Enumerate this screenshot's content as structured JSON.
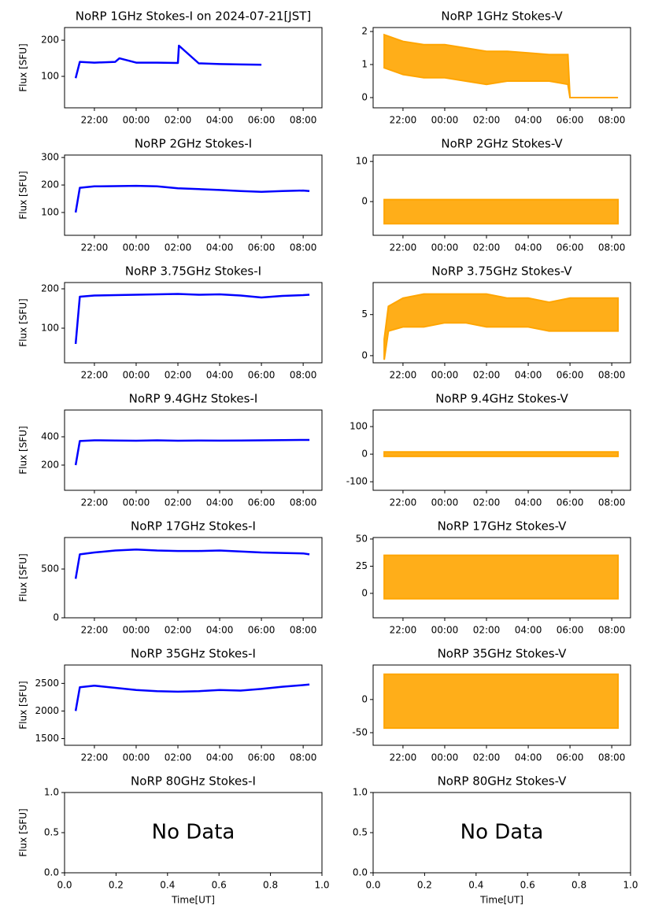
{
  "chart_data": [
    {
      "type": "line",
      "title": "NoRP 1GHz Stokes-I on 2024-07-21[JST]",
      "ylabel": "Flux [SFU]",
      "x": [
        21.1,
        21.3,
        22,
        23,
        23.2,
        24,
        25,
        26,
        26.05,
        27,
        28,
        29,
        30
      ],
      "series": [
        {
          "color": "blue",
          "values": [
            95,
            140,
            138,
            140,
            150,
            138,
            138,
            137,
            185,
            136,
            134,
            133,
            132
          ]
        }
      ],
      "xlim": [
        20.57,
        32.9
      ],
      "xticks": [
        {
          "value": 22,
          "label": "22:00"
        },
        {
          "value": 24,
          "label": "00:00"
        },
        {
          "value": 26,
          "label": "02:00"
        },
        {
          "value": 28,
          "label": "04:00"
        },
        {
          "value": 30,
          "label": "06:00"
        },
        {
          "value": 32,
          "label": "08:00"
        }
      ],
      "ylim": [
        13,
        235
      ],
      "yticks": [
        100,
        200
      ]
    },
    {
      "type": "band",
      "title": "NoRP 1GHz Stokes-V",
      "x": [
        21.1,
        22,
        23,
        24,
        25,
        26,
        27,
        28,
        29,
        29.9,
        30,
        31,
        32,
        32.3
      ],
      "series": [
        {
          "color": "orange",
          "values": [
            1.9,
            1.7,
            1.6,
            1.6,
            1.5,
            1.4,
            1.4,
            1.35,
            1.3,
            1.3,
            0,
            0,
            0,
            0
          ]
        },
        {
          "color": "orange",
          "values": [
            0.9,
            0.7,
            0.6,
            0.6,
            0.5,
            0.4,
            0.5,
            0.5,
            0.5,
            0.4,
            0,
            0,
            0,
            0
          ]
        }
      ],
      "xlim": [
        20.57,
        32.9
      ],
      "xticks": [
        {
          "value": 22,
          "label": "22:00"
        },
        {
          "value": 24,
          "label": "00:00"
        },
        {
          "value": 26,
          "label": "02:00"
        },
        {
          "value": 28,
          "label": "04:00"
        },
        {
          "value": 30,
          "label": "06:00"
        },
        {
          "value": 32,
          "label": "08:00"
        }
      ],
      "ylim": [
        -0.31,
        2.12
      ],
      "yticks": [
        0,
        1,
        2
      ]
    },
    {
      "type": "line",
      "title": "NoRP 2GHz Stokes-I",
      "ylabel": "Flux [SFU]",
      "x": [
        21.1,
        21.3,
        22,
        23,
        24,
        25,
        26,
        27,
        28,
        29,
        30,
        31,
        32,
        32.3
      ],
      "series": [
        {
          "color": "blue",
          "values": [
            100,
            190,
            195,
            196,
            197,
            195,
            188,
            185,
            182,
            178,
            175,
            178,
            180,
            178
          ]
        }
      ],
      "xlim": [
        20.57,
        32.9
      ],
      "xticks": [
        {
          "value": 22,
          "label": "22:00"
        },
        {
          "value": 24,
          "label": "00:00"
        },
        {
          "value": 26,
          "label": "02:00"
        },
        {
          "value": 28,
          "label": "04:00"
        },
        {
          "value": 30,
          "label": "06:00"
        },
        {
          "value": 32,
          "label": "08:00"
        }
      ],
      "ylim": [
        17,
        309
      ],
      "yticks": [
        100,
        200,
        300
      ]
    },
    {
      "type": "band",
      "title": "NoRP 2GHz Stokes-V",
      "x": [
        21.1,
        21.3,
        22,
        23,
        24,
        25,
        26,
        27,
        28,
        29,
        30,
        31,
        32,
        32.3
      ],
      "series": [
        {
          "color": "orange",
          "values": [
            0.5,
            0.5,
            0.5,
            0.5,
            0.5,
            0.5,
            0.5,
            0.5,
            0.5,
            0.5,
            0.5,
            0.5,
            0.5,
            0.5
          ]
        },
        {
          "color": "orange",
          "values": [
            -5.5,
            -5.5,
            -5.5,
            -5.5,
            -5.5,
            -5.5,
            -5.5,
            -5.5,
            -5.5,
            -5.5,
            -5.5,
            -5.5,
            -5.5,
            -5.5
          ]
        }
      ],
      "xlim": [
        20.57,
        32.9
      ],
      "xticks": [
        {
          "value": 22,
          "label": "22:00"
        },
        {
          "value": 24,
          "label": "00:00"
        },
        {
          "value": 26,
          "label": "02:00"
        },
        {
          "value": 28,
          "label": "04:00"
        },
        {
          "value": 30,
          "label": "06:00"
        },
        {
          "value": 32,
          "label": "08:00"
        }
      ],
      "ylim": [
        -8.4,
        11.6
      ],
      "yticks": [
        0,
        10
      ]
    },
    {
      "type": "line",
      "title": "NoRP 3.75GHz Stokes-I",
      "ylabel": "Flux [SFU]",
      "x": [
        21.1,
        21.3,
        22,
        23,
        24,
        25,
        26,
        27,
        28,
        29,
        30,
        31,
        32,
        32.3
      ],
      "series": [
        {
          "color": "blue",
          "values": [
            60,
            180,
            183,
            184,
            185,
            186,
            187,
            185,
            186,
            183,
            178,
            182,
            184,
            185
          ]
        }
      ],
      "xlim": [
        20.57,
        32.9
      ],
      "xticks": [
        {
          "value": 22,
          "label": "22:00"
        },
        {
          "value": 24,
          "label": "00:00"
        },
        {
          "value": 26,
          "label": "02:00"
        },
        {
          "value": 28,
          "label": "04:00"
        },
        {
          "value": 30,
          "label": "06:00"
        },
        {
          "value": 32,
          "label": "08:00"
        }
      ],
      "ylim": [
        12,
        216
      ],
      "yticks": [
        100,
        200
      ]
    },
    {
      "type": "band",
      "title": "NoRP 3.75GHz Stokes-V",
      "x": [
        21.1,
        21.3,
        22,
        23,
        24,
        25,
        26,
        27,
        28,
        29,
        30,
        31,
        32,
        32.3
      ],
      "series": [
        {
          "color": "orange",
          "values": [
            2,
            6,
            7,
            7.5,
            7.5,
            7.5,
            7.5,
            7,
            7,
            6.5,
            7,
            7,
            7,
            7
          ]
        },
        {
          "color": "orange",
          "values": [
            -0.5,
            3,
            3.5,
            3.5,
            4,
            4,
            3.5,
            3.5,
            3.5,
            3,
            3,
            3,
            3,
            3
          ]
        }
      ],
      "xlim": [
        20.57,
        32.9
      ],
      "xticks": [
        {
          "value": 22,
          "label": "22:00"
        },
        {
          "value": 24,
          "label": "00:00"
        },
        {
          "value": 26,
          "label": "02:00"
        },
        {
          "value": 28,
          "label": "04:00"
        },
        {
          "value": 30,
          "label": "06:00"
        },
        {
          "value": 32,
          "label": "08:00"
        }
      ],
      "ylim": [
        -0.87,
        8.9
      ],
      "yticks": [
        0,
        5
      ]
    },
    {
      "type": "line",
      "title": "NoRP 9.4GHz Stokes-I",
      "ylabel": "Flux [SFU]",
      "x": [
        21.1,
        21.3,
        22,
        23,
        24,
        25,
        26,
        27,
        28,
        29,
        30,
        31,
        32,
        32.3
      ],
      "series": [
        {
          "color": "blue",
          "values": [
            200,
            370,
            375,
            374,
            372,
            375,
            372,
            374,
            373,
            374,
            375,
            376,
            378,
            378
          ]
        }
      ],
      "xlim": [
        20.57,
        32.9
      ],
      "xticks": [
        {
          "value": 22,
          "label": "22:00"
        },
        {
          "value": 24,
          "label": "00:00"
        },
        {
          "value": 26,
          "label": "02:00"
        },
        {
          "value": 28,
          "label": "04:00"
        },
        {
          "value": 30,
          "label": "06:00"
        },
        {
          "value": 32,
          "label": "08:00"
        }
      ],
      "ylim": [
        22,
        589
      ],
      "yticks": [
        200,
        400
      ]
    },
    {
      "type": "band",
      "title": "NoRP 9.4GHz Stokes-V",
      "x": [
        21.1,
        21.3,
        22,
        23,
        24,
        25,
        26,
        27,
        28,
        29,
        30,
        31,
        32,
        32.3
      ],
      "series": [
        {
          "color": "orange",
          "values": [
            8,
            8,
            8,
            8,
            8,
            8,
            8,
            8,
            8,
            8,
            8,
            8,
            8,
            8
          ]
        },
        {
          "color": "orange",
          "values": [
            -8,
            -8,
            -8,
            -8,
            -8,
            -8,
            -8,
            -8,
            -8,
            -8,
            -8,
            -8,
            -8,
            -8
          ]
        }
      ],
      "xlim": [
        20.57,
        32.9
      ],
      "xticks": [
        {
          "value": 22,
          "label": "22:00"
        },
        {
          "value": 24,
          "label": "00:00"
        },
        {
          "value": 26,
          "label": "02:00"
        },
        {
          "value": 28,
          "label": "04:00"
        },
        {
          "value": 30,
          "label": "06:00"
        },
        {
          "value": 32,
          "label": "08:00"
        }
      ],
      "ylim": [
        -131,
        160
      ],
      "yticks": [
        -100,
        0,
        100
      ]
    },
    {
      "type": "line",
      "title": "NoRP 17GHz Stokes-I",
      "ylabel": "Flux [SFU]",
      "x": [
        21.1,
        21.3,
        22,
        23,
        24,
        25,
        26,
        27,
        28,
        29,
        30,
        31,
        32,
        32.3
      ],
      "series": [
        {
          "color": "blue",
          "values": [
            400,
            650,
            670,
            690,
            700,
            690,
            685,
            685,
            690,
            680,
            670,
            665,
            660,
            650
          ]
        }
      ],
      "xlim": [
        20.57,
        32.9
      ],
      "xticks": [
        {
          "value": 22,
          "label": "22:00"
        },
        {
          "value": 24,
          "label": "00:00"
        },
        {
          "value": 26,
          "label": "02:00"
        },
        {
          "value": 28,
          "label": "04:00"
        },
        {
          "value": 30,
          "label": "06:00"
        },
        {
          "value": 32,
          "label": "08:00"
        }
      ],
      "ylim": [
        0,
        823
      ],
      "yticks": [
        0,
        500
      ]
    },
    {
      "type": "band",
      "title": "NoRP 17GHz Stokes-V",
      "x": [
        21.1,
        21.3,
        22,
        23,
        24,
        25,
        26,
        27,
        28,
        29,
        30,
        31,
        32,
        32.3
      ],
      "series": [
        {
          "color": "orange",
          "values": [
            35,
            35,
            35,
            35,
            35,
            35,
            35,
            35,
            35,
            35,
            35,
            35,
            35,
            35
          ]
        },
        {
          "color": "orange",
          "values": [
            -5,
            -5,
            -5,
            -5,
            -5,
            -5,
            -5,
            -5,
            -5,
            -5,
            -5,
            -5,
            -5,
            -5
          ]
        }
      ],
      "xlim": [
        20.57,
        32.9
      ],
      "xticks": [
        {
          "value": 22,
          "label": "22:00"
        },
        {
          "value": 24,
          "label": "00:00"
        },
        {
          "value": 26,
          "label": "02:00"
        },
        {
          "value": 28,
          "label": "04:00"
        },
        {
          "value": 30,
          "label": "06:00"
        },
        {
          "value": 32,
          "label": "08:00"
        }
      ],
      "ylim": [
        -22.5,
        51.4
      ],
      "yticks": [
        0,
        25,
        50
      ]
    },
    {
      "type": "line",
      "title": "NoRP 35GHz Stokes-I",
      "ylabel": "Flux [SFU]",
      "x": [
        21.1,
        21.3,
        22,
        23,
        24,
        25,
        26,
        27,
        28,
        29,
        30,
        31,
        32,
        32.3
      ],
      "series": [
        {
          "color": "blue",
          "values": [
            2000,
            2430,
            2460,
            2420,
            2380,
            2360,
            2350,
            2360,
            2380,
            2370,
            2400,
            2440,
            2470,
            2480
          ]
        }
      ],
      "xlim": [
        20.57,
        32.9
      ],
      "xticks": [
        {
          "value": 22,
          "label": "22:00"
        },
        {
          "value": 24,
          "label": "00:00"
        },
        {
          "value": 26,
          "label": "02:00"
        },
        {
          "value": 28,
          "label": "04:00"
        },
        {
          "value": 30,
          "label": "06:00"
        },
        {
          "value": 32,
          "label": "08:00"
        }
      ],
      "ylim": [
        1379,
        2833
      ],
      "yticks": [
        1500,
        2000,
        2500
      ]
    },
    {
      "type": "band",
      "title": "NoRP 35GHz Stokes-V",
      "x": [
        21.1,
        21.3,
        22,
        23,
        24,
        25,
        26,
        27,
        28,
        29,
        30,
        31,
        32,
        32.3
      ],
      "series": [
        {
          "color": "orange",
          "values": [
            38,
            38,
            38,
            38,
            38,
            38,
            38,
            38,
            38,
            38,
            38,
            38,
            38,
            38
          ]
        },
        {
          "color": "orange",
          "values": [
            -43,
            -43,
            -43,
            -43,
            -43,
            -43,
            -43,
            -43,
            -43,
            -43,
            -43,
            -43,
            -43,
            -43
          ]
        }
      ],
      "xlim": [
        20.57,
        32.9
      ],
      "xticks": [
        {
          "value": 22,
          "label": "22:00"
        },
        {
          "value": 24,
          "label": "00:00"
        },
        {
          "value": 26,
          "label": "02:00"
        },
        {
          "value": 28,
          "label": "04:00"
        },
        {
          "value": 30,
          "label": "06:00"
        },
        {
          "value": 32,
          "label": "08:00"
        }
      ],
      "ylim": [
        -69,
        52
      ],
      "yticks": [
        -50,
        0
      ]
    },
    {
      "type": "empty",
      "title": "NoRP 80GHz Stokes-I",
      "ylabel": "Flux [SFU]",
      "xlabel": "Time[UT]",
      "annotation": "No Data",
      "xlim": [
        0,
        1
      ],
      "xticks": [
        {
          "value": 0,
          "label": "0.0"
        },
        {
          "value": 0.2,
          "label": "0.2"
        },
        {
          "value": 0.4,
          "label": "0.4"
        },
        {
          "value": 0.6,
          "label": "0.6"
        },
        {
          "value": 0.8,
          "label": "0.8"
        },
        {
          "value": 1,
          "label": "1.0"
        }
      ],
      "ylim": [
        0,
        1
      ],
      "yticks": [
        {
          "value": 0,
          "label": "0.0"
        },
        {
          "value": 0.5,
          "label": "0.5"
        },
        {
          "value": 1,
          "label": "1.0"
        }
      ]
    },
    {
      "type": "empty",
      "title": "NoRP 80GHz Stokes-V",
      "xlabel": "Time[UT]",
      "annotation": "No Data",
      "xlim": [
        0,
        1
      ],
      "xticks": [
        {
          "value": 0,
          "label": "0.0"
        },
        {
          "value": 0.2,
          "label": "0.2"
        },
        {
          "value": 0.4,
          "label": "0.4"
        },
        {
          "value": 0.6,
          "label": "0.6"
        },
        {
          "value": 0.8,
          "label": "0.8"
        },
        {
          "value": 1,
          "label": "1.0"
        }
      ],
      "ylim": [
        0,
        1
      ],
      "yticks": [
        {
          "value": 0,
          "label": "0.0"
        },
        {
          "value": 0.5,
          "label": "0.5"
        },
        {
          "value": 1,
          "label": "1.0"
        }
      ]
    }
  ]
}
